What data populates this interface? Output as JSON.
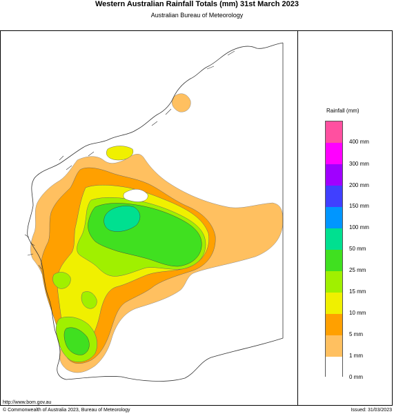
{
  "title": "Western Australian Rainfall Totals (mm) 31st March 2023",
  "subtitle": "Australian Bureau of Meteorology",
  "legend": {
    "title": "Rainfall (mm)",
    "labels": [
      "400 mm",
      "300 mm",
      "200 mm",
      "150 mm",
      "100 mm",
      "50 mm",
      "25 mm",
      "15 mm",
      "10 mm",
      "5 mm",
      "1 mm",
      "0 mm"
    ],
    "bands": [
      {
        "range": "400+",
        "color": "#ff50a0"
      },
      {
        "range": "300-400",
        "color": "#ff00ff"
      },
      {
        "range": "200-300",
        "color": "#a000ff"
      },
      {
        "range": "150-200",
        "color": "#4040ff"
      },
      {
        "range": "100-150",
        "color": "#0096ff"
      },
      {
        "range": "50-100",
        "color": "#00e090"
      },
      {
        "range": "25-50",
        "color": "#40e020"
      },
      {
        "range": "15-25",
        "color": "#a0f000"
      },
      {
        "range": "10-15",
        "color": "#f0f000"
      },
      {
        "range": "5-10",
        "color": "#ffa000"
      },
      {
        "range": "1-5",
        "color": "#ffc060"
      },
      {
        "range": "0-1",
        "color": "#ffffff"
      }
    ]
  },
  "footer": {
    "url": "http://www.bom.gov.au",
    "copyright": "© Commonwealth of Australia 2023, Bureau of Meteorology",
    "issued": "Issued: 31/03/2023"
  }
}
